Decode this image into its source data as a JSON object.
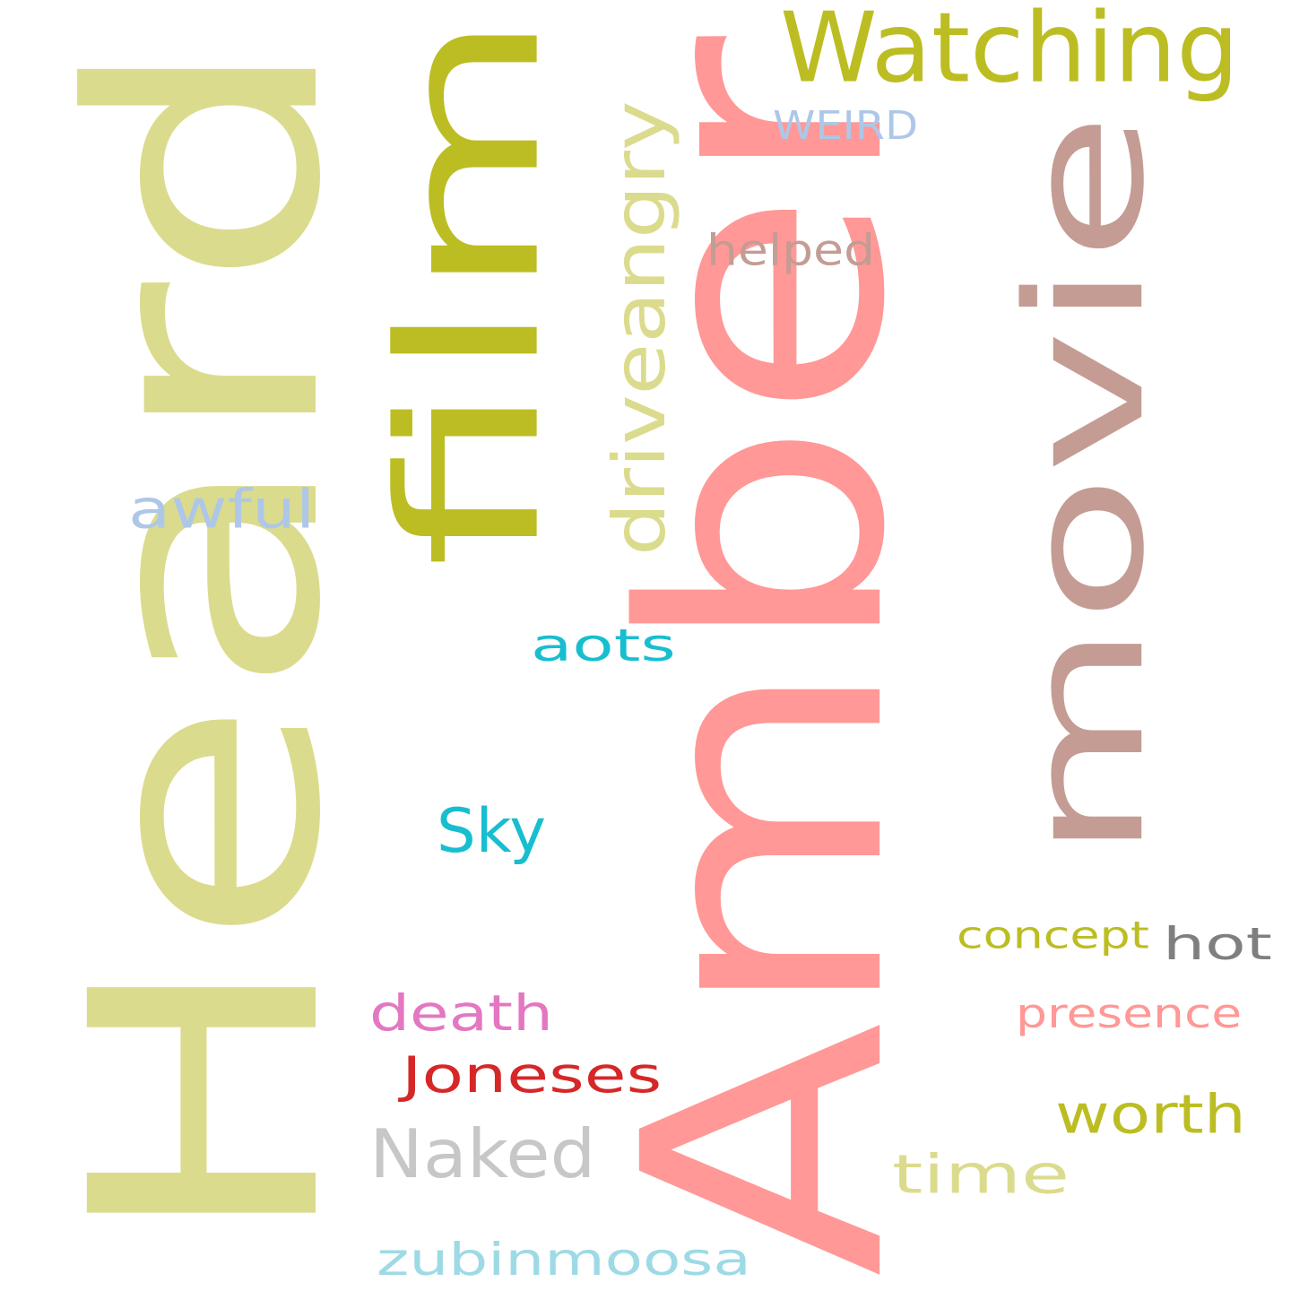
{
  "words": [
    {
      "text": "Amber",
      "color": "#ff9896",
      "rotated": true
    },
    {
      "text": "Heard",
      "color": "#dbdb8d",
      "rotated": true
    },
    {
      "text": "movie",
      "color": "#c49c94",
      "rotated": true
    },
    {
      "text": "film",
      "color": "#bcbd22",
      "rotated": true
    },
    {
      "text": "Watching",
      "color": "#bcbd22",
      "rotated": false
    },
    {
      "text": "driveangry",
      "color": "#dbdb8d",
      "rotated": true
    },
    {
      "text": "WEIRD",
      "color": "#aec7e8",
      "rotated": false
    },
    {
      "text": "helped",
      "color": "#c49c94",
      "rotated": false
    },
    {
      "text": "awful",
      "color": "#aec7e8",
      "rotated": false
    },
    {
      "text": "aots",
      "color": "#17becf",
      "rotated": false
    },
    {
      "text": "Sky",
      "color": "#17becf",
      "rotated": false
    },
    {
      "text": "concept",
      "color": "#bcbd22",
      "rotated": false
    },
    {
      "text": "hot",
      "color": "#7f7f7f",
      "rotated": false
    },
    {
      "text": "death",
      "color": "#e377c2",
      "rotated": false
    },
    {
      "text": "presence",
      "color": "#ff9896",
      "rotated": false
    },
    {
      "text": "Joneses",
      "color": "#d62728",
      "rotated": false
    },
    {
      "text": "worth",
      "color": "#bcbd22",
      "rotated": false
    },
    {
      "text": "Naked",
      "color": "#c7c7c7",
      "rotated": false
    },
    {
      "text": "time",
      "color": "#dbdb8d",
      "rotated": false
    },
    {
      "text": "zubinmoosa",
      "color": "#9edae5",
      "rotated": false
    }
  ]
}
